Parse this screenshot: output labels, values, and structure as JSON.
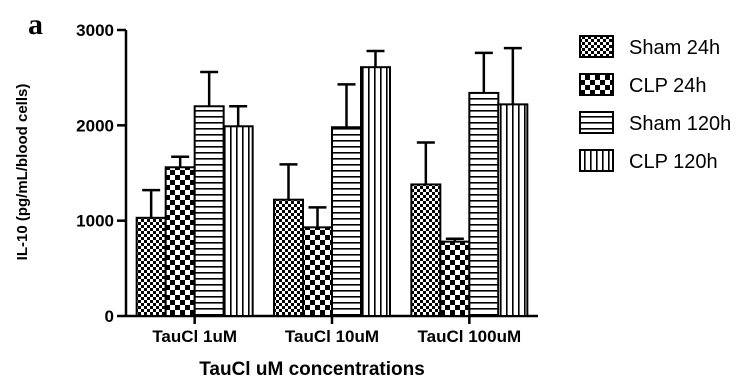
{
  "panel_label": "a",
  "chart_data": {
    "type": "bar",
    "title": "",
    "xlabel": "TauCl uM concentrations",
    "ylabel": "IL-10 (pg/mL/blood cells)",
    "categories": [
      "TauCl 1uM",
      "TauCl 10uM",
      "TauCl 100uM"
    ],
    "ylim": [
      0,
      3000
    ],
    "yticks": [
      0,
      1000,
      2000,
      3000
    ],
    "grid": false,
    "legend": "right",
    "series": [
      {
        "name": "Sham 24h",
        "pattern": "checker-small",
        "values": [
          1030,
          1220,
          1380
        ],
        "errors": [
          290,
          370,
          440
        ]
      },
      {
        "name": "CLP 24h",
        "pattern": "checker-large",
        "values": [
          1560,
          930,
          780
        ],
        "errors": [
          110,
          210,
          30
        ]
      },
      {
        "name": "Sham 120h",
        "pattern": "horizontal-lines",
        "values": [
          2200,
          1980,
          2340
        ],
        "errors": [
          360,
          450,
          420
        ]
      },
      {
        "name": "CLP 120h",
        "pattern": "vertical-lines",
        "values": [
          1990,
          2610,
          2220
        ],
        "errors": [
          210,
          170,
          590
        ]
      }
    ]
  }
}
